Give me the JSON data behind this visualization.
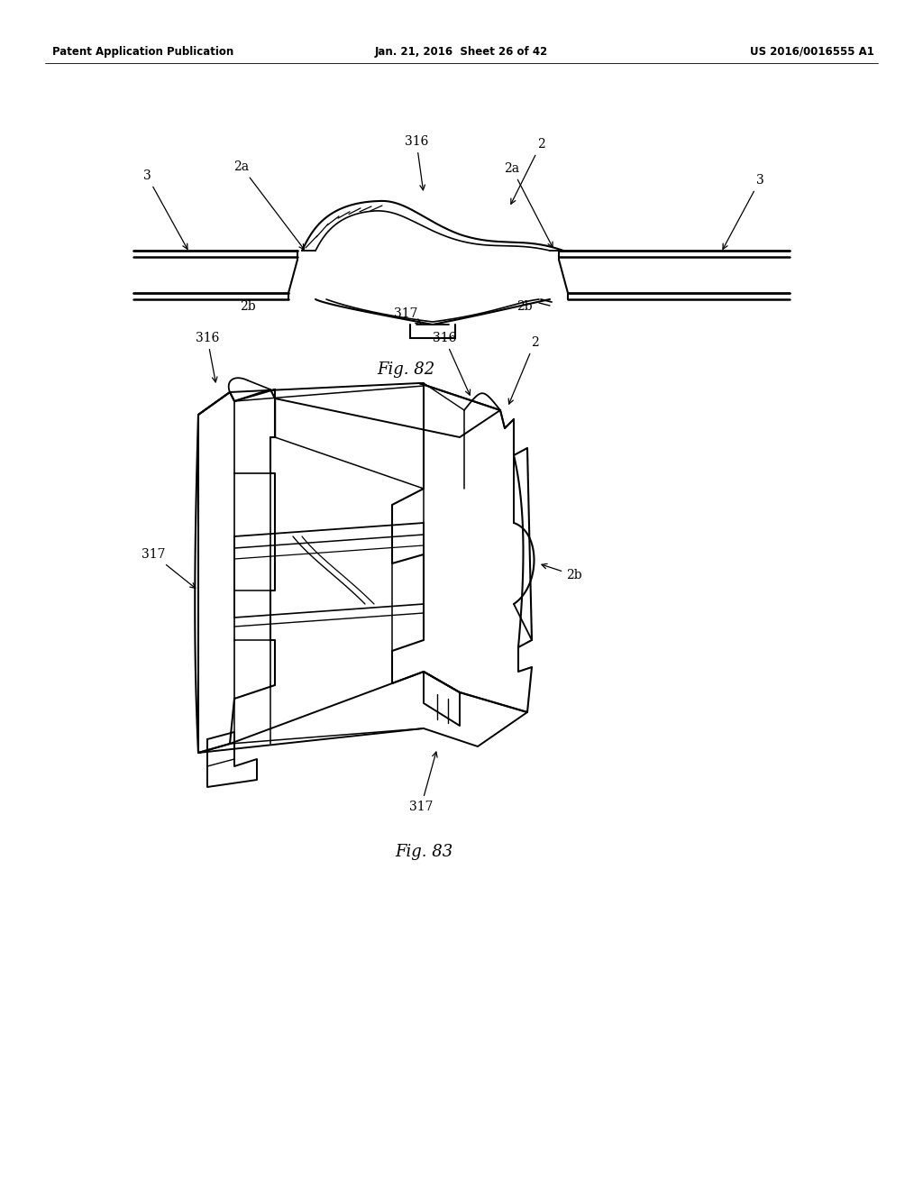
{
  "bg_color": "#ffffff",
  "header_left": "Patent Application Publication",
  "header_mid": "Jan. 21, 2016  Sheet 26 of 42",
  "header_right": "US 2016/0016555 A1",
  "fig82_caption": "Fig. 82",
  "fig83_caption": "Fig. 83",
  "line_color": "#000000",
  "text_color": "#000000",
  "header_fontsize": 8.5,
  "label_fontsize": 10,
  "caption_fontsize": 13
}
